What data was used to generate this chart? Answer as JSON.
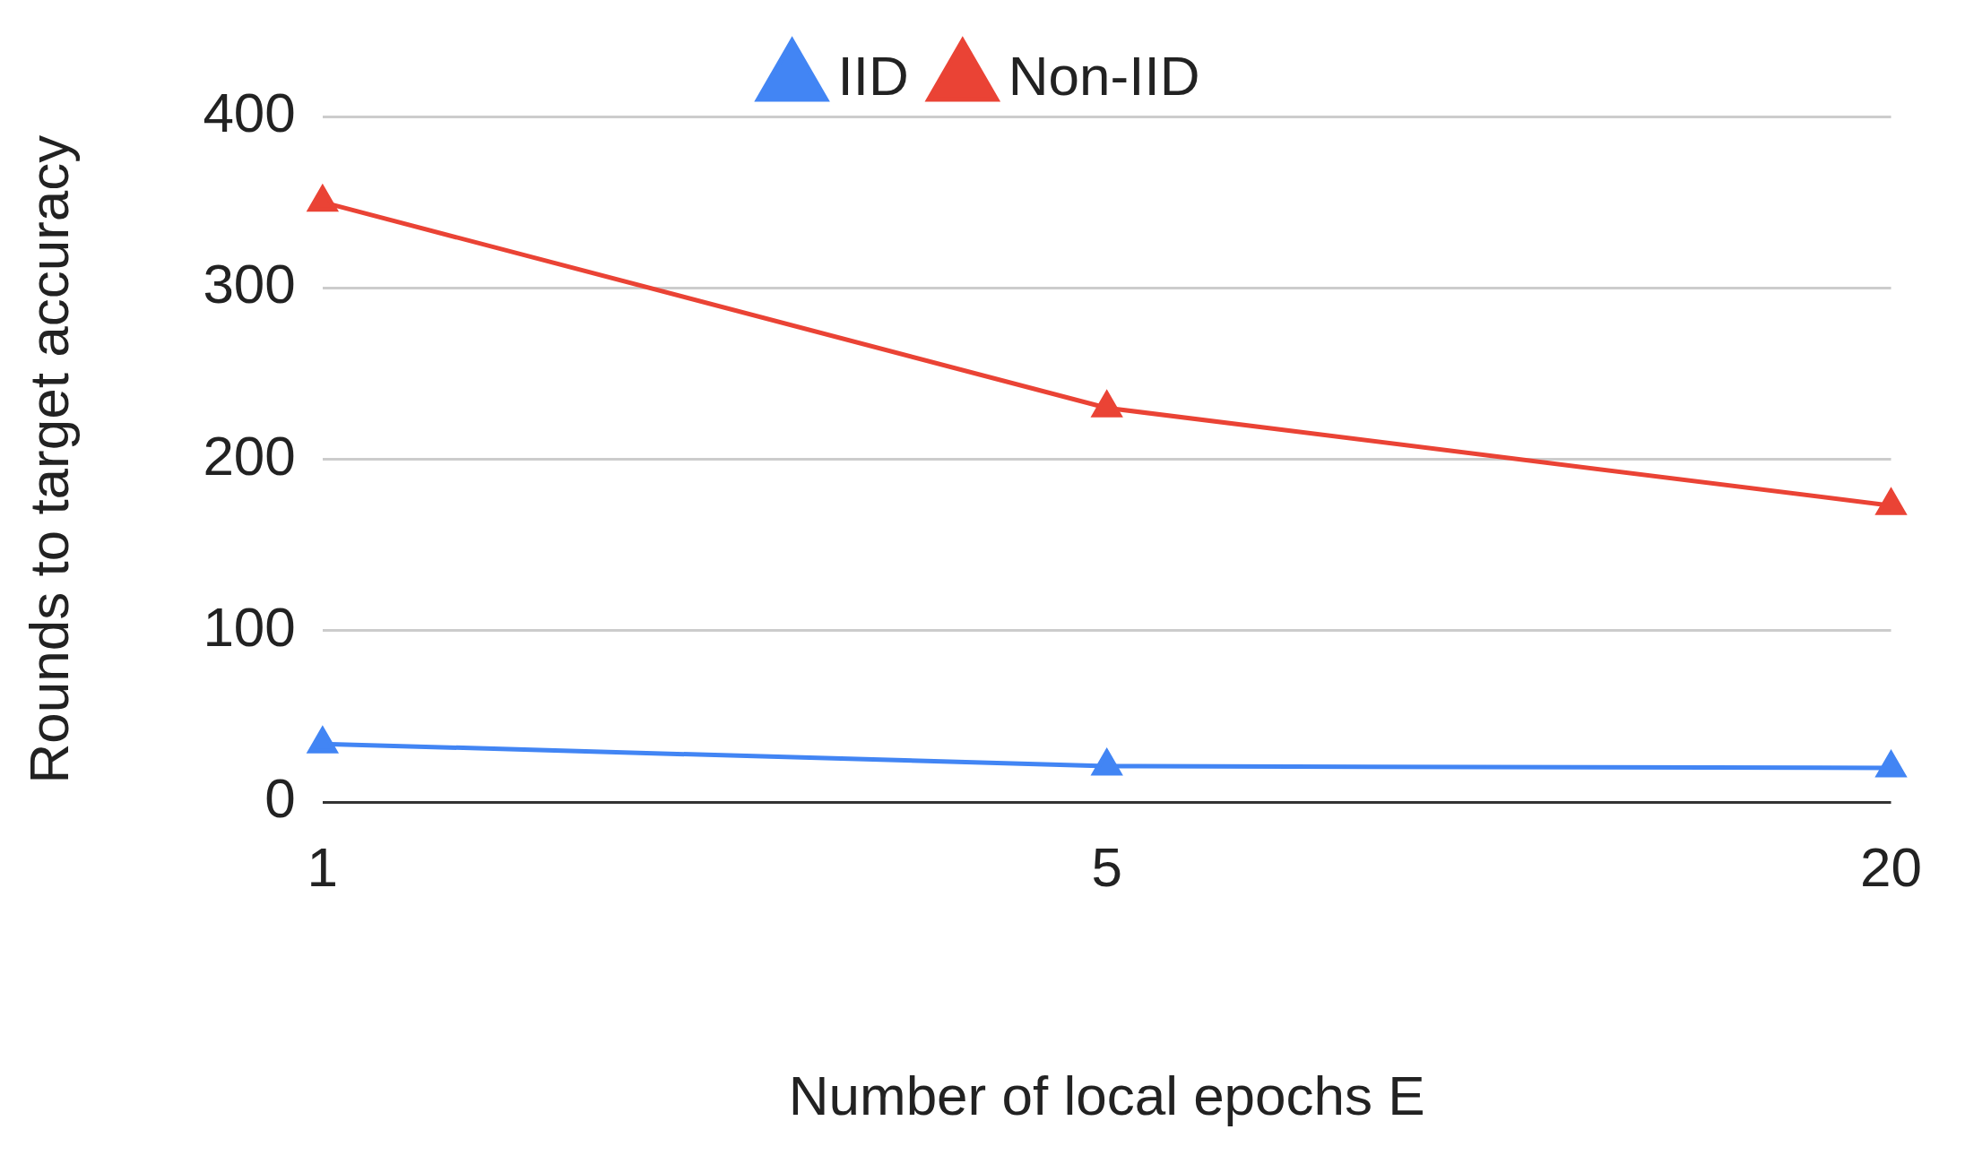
{
  "chart_data": {
    "type": "line",
    "xlabel": "Number of local epochs E",
    "ylabel": "Rounds to target accuracy",
    "categories": [
      "1",
      "5",
      "20"
    ],
    "series": [
      {
        "name": "IID",
        "color": "#4285f4",
        "values": [
          34,
          21,
          20
        ]
      },
      {
        "name": "Non-IID",
        "color": "#ea4335",
        "values": [
          350,
          230,
          173
        ]
      }
    ],
    "ylim": [
      0,
      400
    ],
    "yticks": [
      0,
      100,
      200,
      300,
      400
    ],
    "grid": "y",
    "legend": "top",
    "marker": "triangle",
    "line_style": "solid"
  }
}
